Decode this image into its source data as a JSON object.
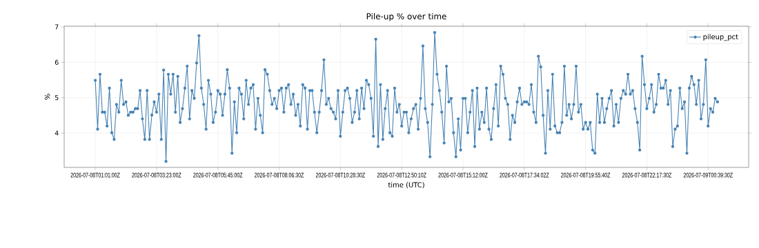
{
  "chart_data": {
    "type": "line",
    "title": "Pile-up % over time",
    "xlabel": "time (UTC)",
    "ylabel": "%",
    "categories": [
      "2026-07-08T01:01:00Z",
      null,
      null,
      null,
      null,
      null,
      null,
      null,
      null,
      null,
      null,
      null,
      null,
      null,
      null,
      null,
      null,
      null,
      null,
      null,
      null,
      null,
      null,
      null,
      null,
      null,
      "2026-07-08T03:23:00Z",
      null,
      null,
      null,
      null,
      null,
      null,
      null,
      null,
      null,
      null,
      null,
      null,
      null,
      null,
      null,
      null,
      null,
      null,
      null,
      null,
      null,
      null,
      null,
      null,
      null,
      "2026-07-08T05:45:00Z",
      null,
      null,
      null,
      null,
      null,
      null,
      null,
      null,
      null,
      null,
      null,
      null,
      null,
      null,
      null,
      null,
      null,
      null,
      null,
      null,
      null,
      null,
      null,
      null,
      null,
      "2026-07-08T08:06:30Z",
      null,
      null,
      null,
      null,
      null,
      null,
      null,
      null,
      null,
      null,
      null,
      null,
      null,
      null,
      null,
      null,
      null,
      null,
      null,
      null,
      null,
      null,
      null,
      null,
      null,
      "2026-07-08T10:28:30Z",
      null,
      null,
      null,
      null,
      null,
      null,
      null,
      null,
      null,
      null,
      null,
      null,
      null,
      null,
      null,
      null,
      null,
      null,
      null,
      null,
      null,
      null,
      null,
      null,
      null,
      "2026-07-08T12:50:10Z",
      null,
      null,
      null,
      null,
      null,
      null,
      null,
      null,
      null,
      null,
      null,
      null,
      null,
      null,
      null,
      null,
      null,
      null,
      null,
      null,
      null,
      null,
      null,
      null,
      null,
      "2026-07-08T15:12:00Z",
      null,
      null,
      null,
      null,
      null,
      null,
      null,
      null,
      null,
      null,
      null,
      null,
      null,
      null,
      null,
      null,
      null,
      null,
      null,
      null,
      null,
      null,
      null,
      null,
      null,
      "2026-07-08T17:34:02Z",
      null,
      null,
      null,
      null,
      null,
      null,
      null,
      null,
      null,
      null,
      null,
      null,
      null,
      null,
      null,
      null,
      null,
      null,
      null,
      null,
      null,
      null,
      null,
      null,
      null,
      "2026-07-08T19:55:40Z",
      null,
      null,
      null,
      null,
      null,
      null,
      null,
      null,
      null,
      null,
      null,
      null,
      null,
      null,
      null,
      null,
      null,
      null,
      null,
      null,
      null,
      null,
      null,
      null,
      null,
      "2026-07-08T22:17:30Z",
      null,
      null,
      null,
      null,
      null,
      null,
      null,
      null,
      null,
      null,
      null,
      null,
      null,
      null,
      null,
      null,
      null,
      null,
      null,
      null,
      null,
      null,
      null,
      null,
      null,
      "2026-07-09T00:39:30Z",
      null,
      null,
      null,
      null
    ],
    "series": [
      {
        "name": "pileup_pct",
        "color": "#4682b4",
        "values": [
          5.49,
          4.11,
          5.66,
          4.59,
          4.59,
          4.2,
          5.27,
          4.01,
          3.82,
          4.81,
          4.59,
          5.49,
          4.81,
          4.88,
          4.5,
          4.59,
          4.59,
          4.69,
          4.69,
          5.2,
          4.4,
          3.82,
          5.2,
          3.82,
          4.51,
          4.88,
          4.59,
          5.1,
          3.82,
          5.78,
          3.2,
          5.66,
          5.1,
          5.66,
          4.59,
          5.6,
          4.3,
          4.69,
          5.27,
          5.89,
          4.4,
          5.2,
          4.98,
          5.98,
          6.75,
          5.27,
          4.81,
          4.11,
          5.49,
          5.1,
          4.3,
          4.59,
          5.2,
          5.1,
          4.5,
          5.1,
          5.79,
          5.27,
          3.43,
          4.88,
          4.01,
          5.27,
          5.1,
          4.4,
          5.49,
          4.81,
          5.27,
          5.37,
          4.11,
          4.98,
          4.5,
          4.01,
          5.79,
          5.66,
          5.2,
          4.81,
          4.98,
          4.69,
          5.2,
          5.27,
          4.59,
          5.27,
          5.37,
          4.81,
          5.1,
          4.5,
          4.81,
          4.2,
          5.37,
          5.27,
          4.11,
          5.2,
          5.2,
          4.59,
          4.01,
          4.59,
          5.2,
          6.07,
          4.81,
          4.98,
          4.69,
          4.59,
          4.4,
          5.2,
          3.91,
          4.59,
          5.2,
          5.27,
          4.98,
          4.3,
          4.59,
          5.2,
          4.4,
          5.27,
          4.69,
          5.49,
          5.37,
          4.98,
          3.91,
          6.65,
          3.62,
          5.37,
          3.82,
          4.69,
          5.2,
          4.01,
          3.91,
          5.27,
          4.59,
          4.81,
          4.2,
          4.59,
          4.59,
          4.01,
          4.4,
          4.69,
          4.81,
          4.11,
          4.98,
          6.46,
          4.69,
          4.3,
          3.33,
          4.81,
          6.84,
          5.66,
          5.2,
          4.59,
          3.72,
          5.89,
          4.88,
          4.98,
          4.01,
          3.33,
          4.4,
          3.52,
          4.98,
          4.98,
          4.01,
          4.59,
          5.2,
          3.62,
          5.27,
          4.11,
          4.59,
          4.3,
          5.27,
          4.11,
          3.82,
          4.69,
          5.37,
          4.2,
          5.89,
          5.66,
          4.98,
          4.81,
          3.82,
          4.5,
          4.3,
          4.88,
          5.27,
          4.81,
          4.88,
          4.88,
          4.81,
          5.37,
          4.59,
          4.3,
          6.17,
          5.87,
          4.5,
          3.43,
          5.2,
          4.11,
          5.66,
          4.2,
          4.01,
          4.01,
          4.3,
          5.89,
          4.5,
          4.81,
          4.4,
          4.81,
          5.89,
          4.59,
          4.81,
          4.11,
          4.3,
          4.11,
          4.3,
          3.52,
          3.43,
          5.1,
          4.3,
          4.98,
          4.3,
          4.69,
          4.98,
          5.2,
          4.2,
          4.81,
          4.3,
          4.98,
          5.2,
          5.1,
          5.66,
          5.1,
          5.2,
          4.69,
          4.3,
          3.52,
          6.17,
          5.37,
          4.69,
          4.98,
          5.37,
          4.59,
          4.81,
          5.66,
          5.27,
          5.27,
          5.49,
          4.81,
          5.2,
          3.62,
          4.11,
          4.2,
          5.27,
          4.69,
          4.88,
          3.43,
          5.27,
          5.6,
          5.37,
          4.81,
          5.49,
          4.4,
          4.81,
          6.07,
          4.2,
          4.69,
          4.59,
          4.98,
          4.88
        ]
      }
    ],
    "ylim": [
      3.03,
      7.02
    ],
    "yticks": [
      4,
      5,
      6,
      7
    ],
    "grid": true,
    "legend": "top right",
    "marker": "circle"
  }
}
